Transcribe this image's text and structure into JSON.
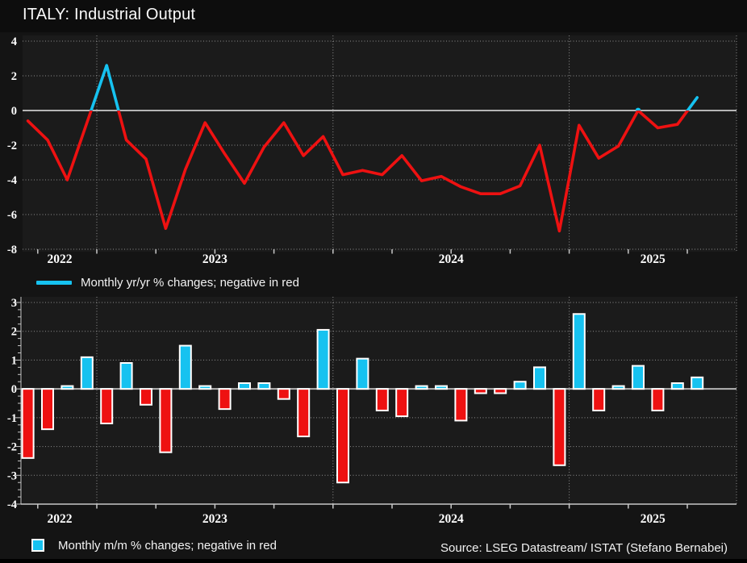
{
  "window": {
    "title": "ITALY: Industrial Output"
  },
  "colors": {
    "background": "#141414",
    "plot_background": "#1b1b1b",
    "red": "#ee1111",
    "cyan": "#16c2f0",
    "grid": "#8f8f8f",
    "zero_line": "#b5b5b5",
    "axis": "#c8c8c8",
    "text": "#ffffff",
    "bar_outline": "#ffffff"
  },
  "legend_top": {
    "label": "Monthly yr/yr % changes; negative in red"
  },
  "legend_bottom": {
    "label": "Monthly m/m % changes; negative in red"
  },
  "source": {
    "label": "Source: LSEG Datastream/ ISTAT (Stefano Bernabei)"
  },
  "chart_data": [
    {
      "type": "line",
      "title": "Monthly yr/yr % changes; negative in red",
      "x_start": "Sep 2022",
      "frequency": "monthly",
      "series": [
        {
          "name": "yr/yr % change",
          "values": [
            -0.6,
            -1.7,
            -4.0,
            -0.7,
            2.6,
            -1.7,
            -2.8,
            -6.8,
            -3.4,
            -0.7,
            -2.5,
            -4.2,
            -2.1,
            -0.7,
            -2.6,
            -1.5,
            -3.7,
            -3.45,
            -3.7,
            -2.6,
            -4.05,
            -3.8,
            -4.4,
            -4.8,
            -4.8,
            -4.35,
            -2.0,
            -6.95,
            -0.85,
            -2.75,
            -2.05,
            0.0,
            -1.0,
            -0.8,
            0.75
          ]
        }
      ],
      "positive_color": "cyan",
      "negative_color": "red",
      "ylim": [
        -8,
        4
      ],
      "yticks": [
        4,
        2,
        0,
        -2,
        -4,
        -6,
        -8
      ],
      "x_year_labels": [
        "2022",
        "2023",
        "2024",
        "2025"
      ],
      "year_boundary_indices": [
        3.5,
        15.5,
        27.5
      ],
      "grid": true,
      "legend_position": "below"
    },
    {
      "type": "bar",
      "title": "Monthly m/m % changes; negative in red",
      "x_start": "Sep 2022",
      "frequency": "monthly",
      "series": [
        {
          "name": "m/m % change",
          "values": [
            -2.4,
            -1.4,
            0.1,
            1.1,
            -1.2,
            0.9,
            -0.55,
            -2.2,
            1.5,
            0.1,
            -0.7,
            0.2,
            0.2,
            -0.35,
            -1.65,
            2.05,
            -3.25,
            1.05,
            -0.75,
            -0.95,
            0.1,
            0.1,
            -1.1,
            -0.15,
            -0.15,
            0.25,
            0.75,
            -2.65,
            2.6,
            -0.75,
            0.1,
            0.8,
            -0.75,
            0.2,
            0.4
          ]
        }
      ],
      "positive_color": "cyan",
      "negative_color": "red",
      "ylim": [
        -4,
        3
      ],
      "yticks": [
        3,
        2,
        1,
        0,
        -1,
        -2,
        -3,
        -4
      ],
      "x_year_labels": [
        "2022",
        "2023",
        "2024",
        "2025"
      ],
      "year_boundary_indices": [
        3.5,
        15.5,
        27.5
      ],
      "grid": true,
      "legend_position": "below"
    }
  ]
}
